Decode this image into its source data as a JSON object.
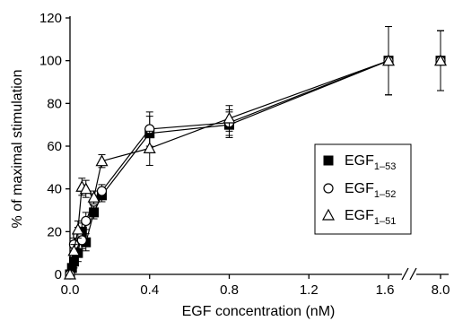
{
  "chart_data": {
    "type": "scatter",
    "xlabel": "EGF concentration (nM)",
    "ylabel": "% of maximal stimulation",
    "xlim": [
      0,
      1.8
    ],
    "ylim": [
      0,
      120
    ],
    "x_ticks": [
      "0.0",
      "0.4",
      "0.8",
      "1.2",
      "1.6",
      "8.0"
    ],
    "y_ticks": [
      "0",
      "20",
      "40",
      "60",
      "80",
      "100",
      "120"
    ],
    "axis_break": "x between 1.6 and 8.0",
    "legend_placement": "right",
    "grid": false,
    "series": [
      {
        "name": "EGF1–53",
        "legend_main": "EGF",
        "legend_sub": "1–53",
        "marker": "filled-square",
        "points": [
          {
            "x": 0,
            "y": 0
          },
          {
            "x": 0.01,
            "y": 3
          },
          {
            "x": 0.02,
            "y": 6
          },
          {
            "x": 0.04,
            "y": 10
          },
          {
            "x": 0.06,
            "y": 20
          },
          {
            "x": 0.08,
            "y": 15
          },
          {
            "x": 0.12,
            "y": 29
          },
          {
            "x": 0.16,
            "y": 37
          },
          {
            "x": 0.4,
            "y": 66
          },
          {
            "x": 0.8,
            "y": 70
          },
          {
            "x": 1.6,
            "y": 100
          },
          {
            "x": 8.0,
            "y": 100
          }
        ]
      },
      {
        "name": "EGF1–52",
        "legend_main": "EGF",
        "legend_sub": "1–52",
        "marker": "open-circle",
        "points": [
          {
            "x": 0,
            "y": 0
          },
          {
            "x": 0.02,
            "y": 14
          },
          {
            "x": 0.04,
            "y": 18
          },
          {
            "x": 0.06,
            "y": 16
          },
          {
            "x": 0.08,
            "y": 25
          },
          {
            "x": 0.12,
            "y": 34
          },
          {
            "x": 0.16,
            "y": 39
          },
          {
            "x": 0.4,
            "y": 68
          },
          {
            "x": 0.8,
            "y": 71
          },
          {
            "x": 1.6,
            "y": 100
          },
          {
            "x": 8.0,
            "y": 100
          }
        ]
      },
      {
        "name": "EGF1–51",
        "legend_main": "EGF",
        "legend_sub": "1–51",
        "marker": "open-triangle",
        "points": [
          {
            "x": 0,
            "y": 0
          },
          {
            "x": 0.02,
            "y": 11
          },
          {
            "x": 0.04,
            "y": 21
          },
          {
            "x": 0.06,
            "y": 41
          },
          {
            "x": 0.08,
            "y": 40
          },
          {
            "x": 0.12,
            "y": 36
          },
          {
            "x": 0.16,
            "y": 53
          },
          {
            "x": 0.4,
            "y": 59
          },
          {
            "x": 0.8,
            "y": 73
          },
          {
            "x": 1.6,
            "y": 100
          },
          {
            "x": 8.0,
            "y": 100
          }
        ]
      }
    ]
  }
}
